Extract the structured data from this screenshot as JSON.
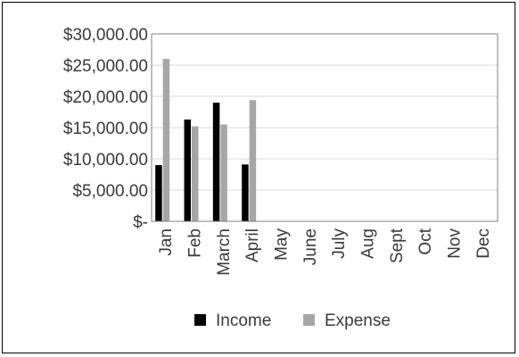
{
  "chart_data": {
    "type": "bar",
    "categories": [
      "Jan",
      "Feb",
      "March",
      "April",
      "May",
      "June",
      "July",
      "Aug",
      "Sept",
      "Oct",
      "Nov",
      "Dec"
    ],
    "series": [
      {
        "name": "Income",
        "color": "#000000",
        "values": [
          9000,
          16300,
          19000,
          9100,
          null,
          null,
          null,
          null,
          null,
          null,
          null,
          null
        ]
      },
      {
        "name": "Expense",
        "color": "#a6a6a6",
        "values": [
          26000,
          15200,
          15500,
          19400,
          null,
          null,
          null,
          null,
          null,
          null,
          null,
          null
        ]
      }
    ],
    "yticks": [
      "$-",
      "$5,000.00",
      "$10,000.00",
      "$15,000.00",
      "$20,000.00",
      "$25,000.00",
      "$30,000.00"
    ],
    "ylim": [
      0,
      30000
    ],
    "grid": true,
    "legend_position": "bottom"
  }
}
